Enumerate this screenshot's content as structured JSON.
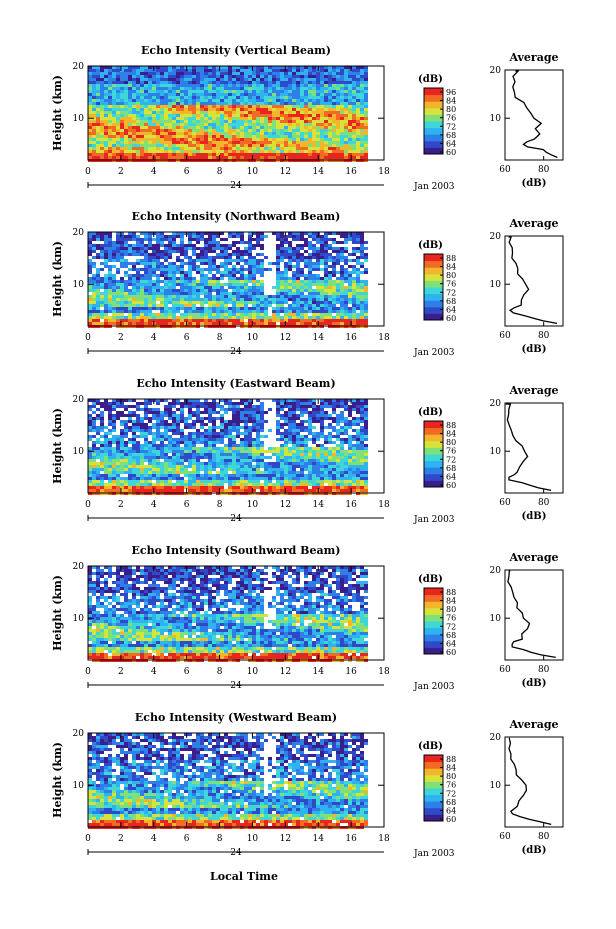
{
  "figure": {
    "xlabel": "Local Time",
    "date_label": "Jan 2003",
    "day_label": "24"
  },
  "colors": {
    "colormap": [
      "#3a1f8c",
      "#2f49c9",
      "#2f7fe8",
      "#2fb2f0",
      "#3fd6d8",
      "#7fe07a",
      "#d6e33b",
      "#f2b52b",
      "#f26b25",
      "#e8261f"
    ]
  },
  "chart_data": [
    {
      "type": "heatmap",
      "title": "Echo Intensity (Vertical Beam)",
      "ylabel": "Height (km)",
      "xlim": [
        0,
        18
      ],
      "ylim": [
        2,
        20
      ],
      "xticks": [
        0,
        2,
        4,
        6,
        8,
        10,
        12,
        14,
        16,
        18
      ],
      "xtick_labels": [
        "0",
        "2",
        "4",
        "6",
        "8",
        "10",
        "12",
        "14",
        "16",
        "18"
      ],
      "yticks": [
        10,
        20
      ],
      "data_end_hour": 16.9,
      "colorbar": {
        "unit": "(dB)",
        "range": [
          60,
          96
        ],
        "tick_labels": [
          "96",
          "84",
          "80",
          "76",
          "72",
          "68",
          "64",
          "60"
        ]
      },
      "profile": {
        "title": "Average",
        "xlabel": "(dB)",
        "xlim": [
          60,
          90
        ],
        "xtick_labels": [
          "60",
          "80"
        ],
        "heights": [
          2.5,
          3,
          3.5,
          4,
          4.5,
          5,
          5.5,
          6,
          7,
          8,
          9,
          10,
          11,
          12,
          13,
          14,
          15,
          16,
          17,
          18,
          19,
          19.7
        ],
        "values": [
          88,
          84,
          82,
          80,
          72,
          70,
          72,
          75,
          77,
          76,
          78,
          75,
          74,
          72,
          70,
          65,
          64,
          65,
          66,
          64,
          66,
          65
        ]
      }
    },
    {
      "type": "heatmap",
      "title": "Echo Intensity (Northward Beam)",
      "ylabel": "Height (km)",
      "xlim": [
        0,
        18
      ],
      "ylim": [
        2,
        20
      ],
      "xticks": [
        0,
        2,
        4,
        6,
        8,
        10,
        12,
        14,
        16,
        18
      ],
      "xtick_labels": [
        "0",
        "2",
        "4",
        "6",
        "8",
        "10",
        "12",
        "14",
        "16",
        "18"
      ],
      "yticks": [
        10,
        20
      ],
      "data_end_hour": 16.9,
      "colorbar": {
        "unit": "(dB)",
        "range": [
          60,
          96
        ],
        "tick_labels": [
          "88",
          "84",
          "80",
          "76",
          "72",
          "68",
          "64",
          "60"
        ]
      },
      "profile": {
        "title": "Average",
        "xlabel": "(dB)",
        "xlim": [
          60,
          90
        ],
        "xtick_labels": [
          "60",
          "80"
        ],
        "heights": [
          2.5,
          3,
          3.5,
          4,
          4.5,
          5,
          5.5,
          6,
          7,
          8,
          9,
          10,
          11,
          12,
          13,
          14,
          15,
          16,
          17,
          18,
          19,
          19.7
        ],
        "values": [
          86,
          80,
          74,
          70,
          64,
          63,
          65,
          68,
          69,
          70,
          72,
          71,
          69,
          67,
          66,
          65,
          64,
          63,
          63,
          62,
          63,
          62
        ]
      }
    },
    {
      "type": "heatmap",
      "title": "Echo Intensity (Eastward Beam)",
      "ylabel": "Height (km)",
      "xlim": [
        0,
        18
      ],
      "ylim": [
        2,
        20
      ],
      "xticks": [
        0,
        2,
        4,
        6,
        8,
        10,
        12,
        14,
        16,
        18
      ],
      "xtick_labels": [
        "0",
        "2",
        "4",
        "6",
        "8",
        "10",
        "12",
        "14",
        "16",
        "18"
      ],
      "yticks": [
        10,
        20
      ],
      "data_end_hour": 16.9,
      "colorbar": {
        "unit": "(dB)",
        "range": [
          60,
          96
        ],
        "tick_labels": [
          "88",
          "84",
          "80",
          "76",
          "72",
          "68",
          "64",
          "60"
        ]
      },
      "profile": {
        "title": "Average",
        "xlabel": "(dB)",
        "xlim": [
          60,
          90
        ],
        "xtick_labels": [
          "60",
          "80"
        ],
        "heights": [
          2.5,
          3,
          3.5,
          4,
          4.5,
          5,
          5.5,
          6,
          7,
          8,
          9,
          10,
          11,
          12,
          13,
          14,
          15,
          16,
          17,
          18,
          19,
          19.7
        ],
        "values": [
          84,
          78,
          72,
          68,
          63,
          62,
          64,
          67,
          68,
          70,
          72,
          71,
          68,
          66,
          65,
          64,
          63,
          62,
          62,
          61,
          62,
          61
        ]
      }
    },
    {
      "type": "heatmap",
      "title": "Echo Intensity (Southward Beam)",
      "ylabel": "Height (km)",
      "xlim": [
        0,
        18
      ],
      "ylim": [
        2,
        20
      ],
      "xticks": [
        0,
        2,
        4,
        6,
        8,
        10,
        12,
        14,
        16,
        18
      ],
      "xtick_labels": [
        "0",
        "2",
        "4",
        "6",
        "8",
        "10",
        "12",
        "14",
        "16",
        "18"
      ],
      "yticks": [
        10,
        20
      ],
      "data_end_hour": 16.9,
      "colorbar": {
        "unit": "(dB)",
        "range": [
          60,
          96
        ],
        "tick_labels": [
          "88",
          "84",
          "80",
          "76",
          "72",
          "68",
          "64",
          "60"
        ]
      },
      "profile": {
        "title": "Average",
        "xlabel": "(dB)",
        "xlim": [
          60,
          90
        ],
        "xtick_labels": [
          "60",
          "80"
        ],
        "heights": [
          2.5,
          3,
          3.5,
          4,
          4.5,
          5,
          5.5,
          6,
          7,
          8,
          9,
          10,
          11,
          12,
          13,
          14,
          15,
          16,
          17,
          18,
          19,
          19.7
        ],
        "values": [
          86,
          79,
          73,
          69,
          64,
          63,
          65,
          68,
          69,
          71,
          72,
          70,
          68,
          67,
          66,
          65,
          64,
          63,
          62,
          62,
          63,
          62
        ]
      }
    },
    {
      "type": "heatmap",
      "title": "Echo Intensity (Westward Beam)",
      "ylabel": "Height (km)",
      "xlim": [
        0,
        18
      ],
      "ylim": [
        2,
        20
      ],
      "xticks": [
        0,
        2,
        4,
        6,
        8,
        10,
        12,
        14,
        16,
        18
      ],
      "xtick_labels": [
        "0",
        "2",
        "4",
        "6",
        "8",
        "10",
        "12",
        "14",
        "16",
        "18"
      ],
      "yticks": [
        10,
        20
      ],
      "data_end_hour": 16.9,
      "colorbar": {
        "unit": "(dB)",
        "range": [
          60,
          96
        ],
        "tick_labels": [
          "88",
          "84",
          "80",
          "76",
          "72",
          "68",
          "64",
          "60"
        ]
      },
      "profile": {
        "title": "Average",
        "xlabel": "(dB)",
        "xlim": [
          60,
          90
        ],
        "xtick_labels": [
          "60",
          "80"
        ],
        "heights": [
          2.5,
          3,
          3.5,
          4,
          4.5,
          5,
          5.5,
          6,
          7,
          8,
          9,
          10,
          11,
          12,
          13,
          14,
          15,
          16,
          17,
          18,
          19,
          19.7
        ],
        "values": [
          84,
          78,
          72,
          68,
          64,
          63,
          65,
          67,
          68,
          70,
          71,
          70,
          68,
          66,
          65,
          64,
          63,
          63,
          62,
          62,
          63,
          62
        ]
      }
    }
  ]
}
